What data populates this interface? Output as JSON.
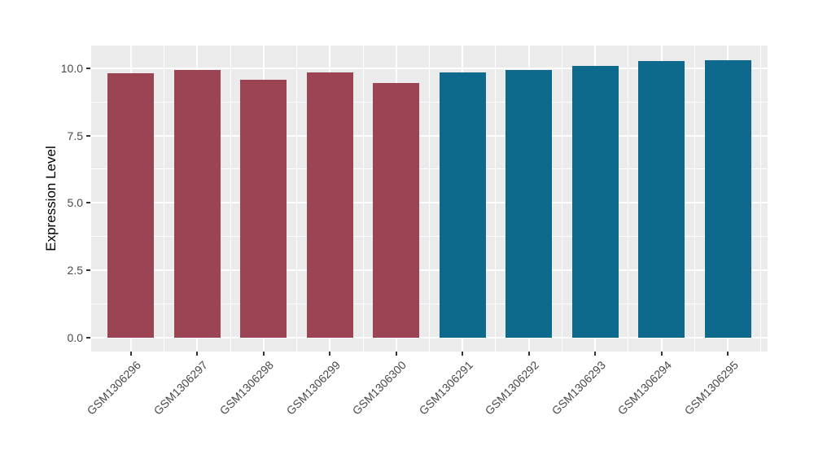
{
  "figure": {
    "background_color": "#FFFFFF"
  },
  "chart_data": {
    "type": "bar",
    "title": "",
    "xlabel": "",
    "ylabel": "Expression Level",
    "categories": [
      "GSM1306296",
      "GSM1306297",
      "GSM1306298",
      "GSM1306299",
      "GSM1306300",
      "GSM1306291",
      "GSM1306292",
      "GSM1306293",
      "GSM1306294",
      "GSM1306295"
    ],
    "values": [
      9.8,
      9.92,
      9.58,
      9.83,
      9.46,
      9.84,
      9.93,
      10.09,
      10.26,
      10.31
    ],
    "bar_colors": [
      "#9B4453",
      "#9B4453",
      "#9B4453",
      "#9B4453",
      "#9B4453",
      "#0E6A8C",
      "#0E6A8C",
      "#0E6A8C",
      "#0E6A8C",
      "#0E6A8C"
    ],
    "groups": [
      {
        "color": "#9B4453",
        "samples": [
          "GSM1306296",
          "GSM1306297",
          "GSM1306298",
          "GSM1306299",
          "GSM1306300"
        ]
      },
      {
        "color": "#0E6A8C",
        "samples": [
          "GSM1306291",
          "GSM1306292",
          "GSM1306293",
          "GSM1306294",
          "GSM1306295"
        ]
      }
    ],
    "ytick_labels": [
      "0.0",
      "2.5",
      "5.0",
      "7.5",
      "10.0"
    ],
    "yticks": [
      0,
      2.5,
      5,
      7.5,
      10
    ],
    "minor_yticks": [
      1.25,
      3.75,
      6.25,
      8.75
    ],
    "ylim": [
      -0.52,
      10.84
    ],
    "x_label_rotation": -45,
    "grid": true,
    "legend_position": "none",
    "panel_background": "#EBEBEB",
    "grid_color": "#FFFFFF",
    "axis_text_color": "#4A4A4A",
    "tick_mark_color": "#333333"
  }
}
